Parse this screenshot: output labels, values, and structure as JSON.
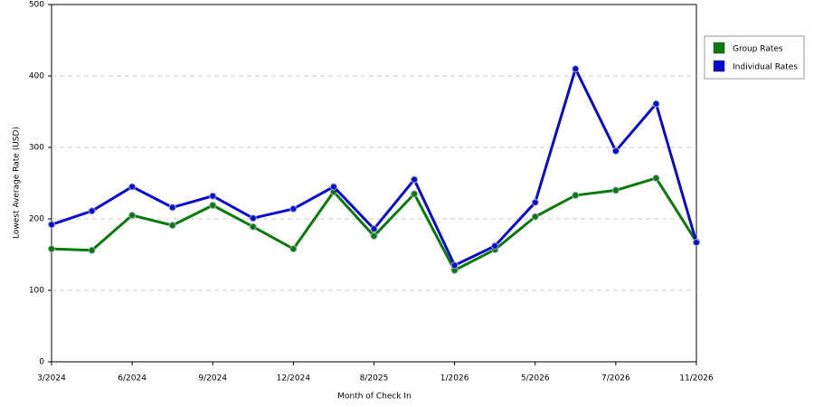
{
  "chart_data": {
    "type": "line",
    "xlabel": "Month of Check In",
    "ylabel": "Lowest Average Rate (USD)",
    "categories": [
      "3/2024",
      null,
      "6/2024",
      null,
      "9/2024",
      null,
      "12/2024",
      null,
      "8/2025",
      null,
      "1/2026",
      null,
      "5/2026",
      null,
      "7/2026",
      null,
      "11/2026"
    ],
    "series": [
      {
        "name": "Group Rates",
        "color": "#0a7a0a",
        "values": [
          158,
          156,
          205,
          191,
          219,
          189,
          158,
          238,
          176,
          235,
          128,
          157,
          203,
          233,
          240,
          257,
          168
        ]
      },
      {
        "name": "Individual Rates",
        "color": "#0a0ad0",
        "values": [
          192,
          211,
          245,
          216,
          232,
          201,
          214,
          245,
          186,
          255,
          135,
          162,
          223,
          410,
          295,
          361,
          167
        ]
      }
    ],
    "ylim": [
      0,
      500
    ],
    "yticks": [
      0,
      100,
      200,
      300,
      400,
      500
    ],
    "grid": true,
    "legend": "top-right"
  }
}
